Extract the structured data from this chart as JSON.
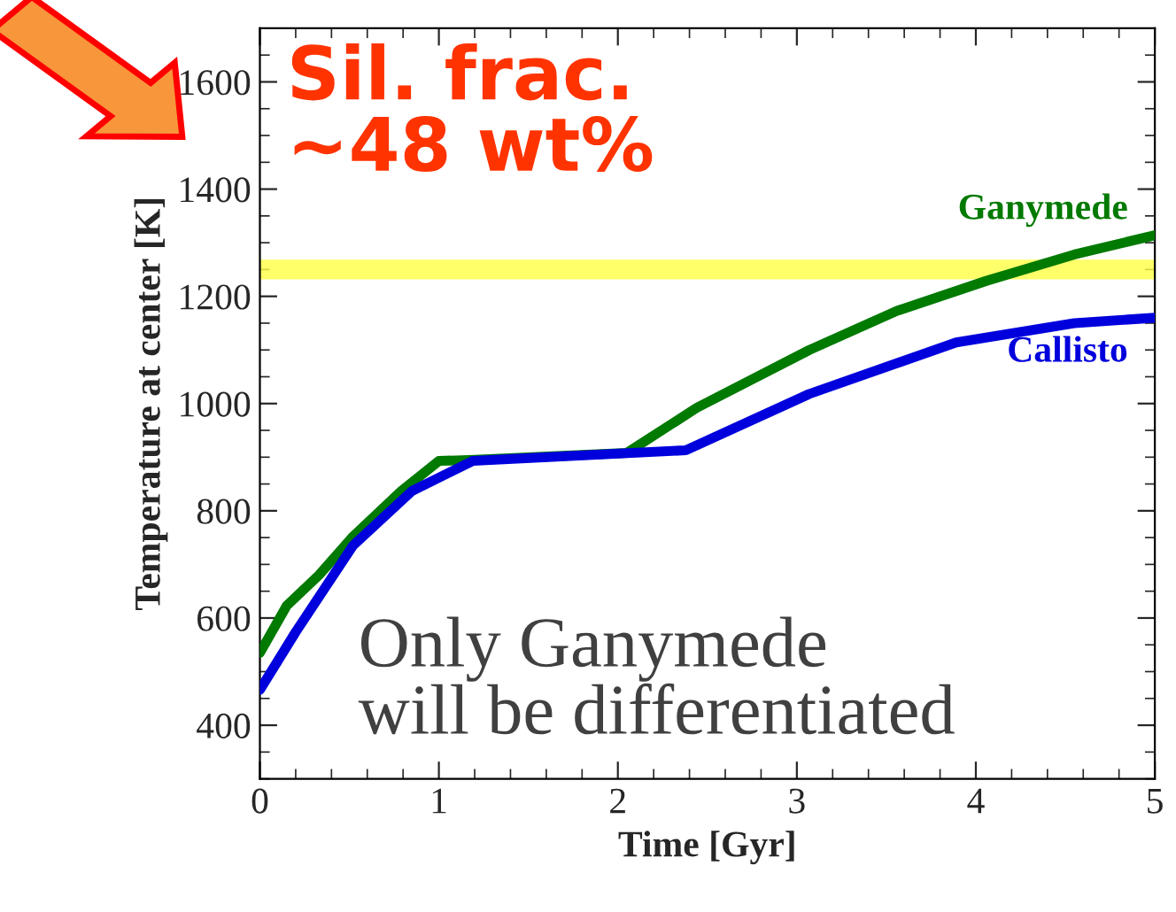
{
  "chart_data": {
    "type": "line",
    "xlabel": "Time [Gyr]",
    "ylabel": "Temperature at center [K]",
    "xlim": [
      0,
      5
    ],
    "xticks": [
      0,
      1,
      2,
      3,
      4,
      5
    ],
    "ylim": [
      300,
      1700
    ],
    "yticks": [
      400,
      600,
      800,
      1000,
      1200,
      1400,
      1600
    ],
    "grid": false,
    "legend": false,
    "marker": "none",
    "line_style": "solid",
    "series": [
      {
        "name": "Ganymede",
        "color": "#007a00",
        "x": [
          0,
          0.15,
          0.33,
          0.52,
          0.79,
          1.0,
          1.2,
          2.05,
          2.44,
          3.07,
          3.56,
          4.06,
          4.55,
          5
        ],
        "values": [
          535,
          623,
          680,
          752,
          837,
          893,
          895,
          908,
          992,
          1100,
          1173,
          1229,
          1278,
          1314
        ]
      },
      {
        "name": "Callisto",
        "color": "#0000dd",
        "x": [
          0,
          0.2,
          0.52,
          0.85,
          1.19,
          2.38,
          3.07,
          3.89,
          4.55,
          5
        ],
        "values": [
          466,
          574,
          735,
          837,
          893,
          913,
          1018,
          1114,
          1150,
          1160
        ]
      }
    ],
    "ref_lines": [
      {
        "axis": "y",
        "value": 1250,
        "color": "#ffff44"
      }
    ],
    "annotations": [
      "Sil. frac.\n~48 wt%",
      "Only Ganymede\nwill be differentiated"
    ]
  }
}
